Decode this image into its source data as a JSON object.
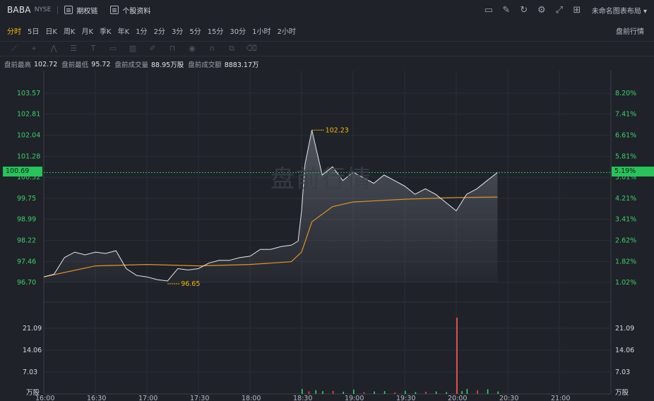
{
  "header": {
    "symbol": "BABA",
    "exchange": "NYSE",
    "links": [
      "期权链",
      "个股资料"
    ],
    "layout_name": "未命名图表布局",
    "right_icons": [
      "screenshot-icon",
      "edit-icon",
      "refresh-icon",
      "settings-icon",
      "fullscreen-icon",
      "grid-icon"
    ]
  },
  "periods": {
    "items": [
      "分时",
      "5日",
      "日K",
      "周K",
      "月K",
      "季K",
      "年K",
      "1分",
      "2分",
      "3分",
      "5分",
      "15分",
      "30分",
      "1小时",
      "2小时"
    ],
    "active": "分时",
    "mode": "盘前行情"
  },
  "stats": {
    "high_label": "盘前最高",
    "high": "102.72",
    "low_label": "盘前最低",
    "low": "95.72",
    "vol_label": "盘前成交量",
    "vol": "88.95万股",
    "amt_label": "盘前成交额",
    "amt": "8883.17万"
  },
  "watermark": "盘前行情",
  "colors": {
    "up": "#3fcf6b",
    "down": "#e34b4b",
    "avg": "#e0962c",
    "price": "#e6e8ec",
    "cursor": "#27c45a",
    "marker": "#f0b90b"
  },
  "axes": {
    "price_ticks": [
      "103.57",
      "102.81",
      "102.04",
      "101.28",
      "100.52",
      "99.75",
      "98.99",
      "98.22",
      "97.46",
      "96.70"
    ],
    "pct_ticks": [
      "8.20%",
      "7.41%",
      "6.61%",
      "5.81%",
      "5.01%",
      "4.21%",
      "3.41%",
      "2.62%",
      "1.82%",
      "1.02%"
    ],
    "volume_ticks": [
      "21.09",
      "14.06",
      "7.03"
    ],
    "volume_unit": "万股",
    "time_ticks": [
      "16:00",
      "16:30",
      "17:00",
      "17:30",
      "18:00",
      "18:30",
      "19:00",
      "19:30",
      "20:00",
      "20:30",
      "21:00"
    ]
  },
  "current": {
    "price": "100.69",
    "pct": "5.19%"
  },
  "markers": {
    "high_label": "102.23",
    "low_label": "96.65"
  },
  "chart_data": {
    "type": "line",
    "x_unit": "time",
    "price_range": [
      96.7,
      103.57
    ],
    "series": [
      {
        "x": [
          "16:00",
          "16:06",
          "16:12",
          "16:18",
          "16:24",
          "16:30",
          "16:36",
          "16:42",
          "16:48",
          "16:54",
          "17:00",
          "17:06",
          "17:12",
          "17:18",
          "17:24",
          "17:30",
          "17:36",
          "17:42",
          "17:48",
          "17:54",
          "18:00",
          "18:06",
          "18:12",
          "18:18",
          "18:24",
          "18:28",
          "18:30",
          "18:32",
          "18:36",
          "18:42",
          "18:48",
          "18:54",
          "19:00",
          "19:06",
          "19:12",
          "19:18",
          "19:24",
          "19:30",
          "19:36",
          "19:42",
          "19:48",
          "19:54",
          "20:00",
          "20:06",
          "20:12",
          "20:18",
          "20:24"
        ],
        "values": [
          96.9,
          97.0,
          97.6,
          97.8,
          97.7,
          97.8,
          97.75,
          97.85,
          97.2,
          96.95,
          96.9,
          96.8,
          96.75,
          97.2,
          97.15,
          97.2,
          97.4,
          97.5,
          97.5,
          97.6,
          97.65,
          97.9,
          97.9,
          98.0,
          98.05,
          98.2,
          99.3,
          101.0,
          102.23,
          100.6,
          100.9,
          100.4,
          100.7,
          100.5,
          100.3,
          100.6,
          100.4,
          100.2,
          99.9,
          100.1,
          99.9,
          99.6,
          99.3,
          99.9,
          100.1,
          100.4,
          100.69
        ]
      },
      {
        "x": [
          "16:00",
          "16:30",
          "17:00",
          "17:30",
          "18:00",
          "18:24",
          "18:30",
          "18:36",
          "18:48",
          "19:00",
          "19:30",
          "20:00",
          "20:24"
        ],
        "values": [
          96.9,
          97.3,
          97.35,
          97.3,
          97.35,
          97.45,
          97.8,
          98.9,
          99.45,
          99.62,
          99.72,
          99.78,
          99.8
        ]
      }
    ],
    "volume": {
      "x": [
        "18:30",
        "18:34",
        "18:38",
        "18:42",
        "18:48",
        "18:54",
        "19:00",
        "19:06",
        "19:12",
        "19:18",
        "19:24",
        "19:30",
        "19:36",
        "19:42",
        "19:48",
        "19:54",
        "20:00",
        "20:03",
        "20:06",
        "20:12",
        "20:18",
        "20:24"
      ],
      "values": [
        1.6,
        0.8,
        1.2,
        0.9,
        1.0,
        0.7,
        1.4,
        0.6,
        0.8,
        0.9,
        0.5,
        1.0,
        0.6,
        0.7,
        0.8,
        0.6,
        24.5,
        0.9,
        1.6,
        1.2,
        1.5,
        0.8
      ]
    }
  }
}
